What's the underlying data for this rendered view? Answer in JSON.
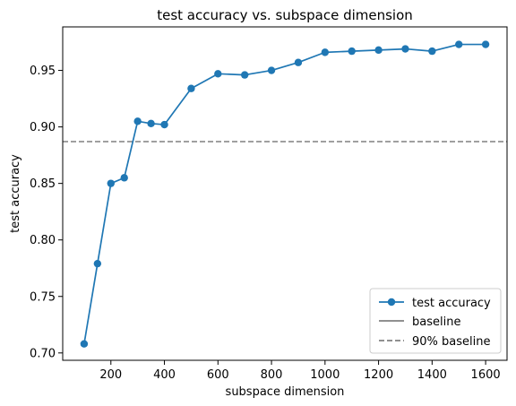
{
  "chart_data": {
    "type": "line",
    "title": "test accuracy vs. subspace dimension",
    "xlabel": "subspace dimension",
    "ylabel": "test accuracy",
    "xlim": [
      20,
      1680
    ],
    "ylim": [
      0.6935,
      0.9885
    ],
    "xticks": [
      200,
      400,
      600,
      800,
      1000,
      1200,
      1400,
      1600
    ],
    "xtick_labels": [
      "200",
      "400",
      "600",
      "800",
      "1000",
      "1200",
      "1400",
      "1600"
    ],
    "yticks": [
      0.7,
      0.75,
      0.8,
      0.85,
      0.9,
      0.95
    ],
    "ytick_labels": [
      "0.70",
      "0.75",
      "0.80",
      "0.85",
      "0.90",
      "0.95"
    ],
    "grid": false,
    "legend_position": "lower right",
    "series": [
      {
        "name": "test accuracy",
        "x": [
          100,
          150,
          200,
          250,
          300,
          350,
          400,
          500,
          600,
          700,
          800,
          900,
          1000,
          1100,
          1200,
          1300,
          1400,
          1500,
          1600
        ],
        "values": [
          0.708,
          0.779,
          0.85,
          0.855,
          0.905,
          0.903,
          0.902,
          0.934,
          0.947,
          0.946,
          0.95,
          0.957,
          0.966,
          0.967,
          0.968,
          0.969,
          0.967,
          0.973,
          0.973
        ],
        "color": "#1f77b4",
        "style": "solid",
        "marker": "circle"
      },
      {
        "name": "baseline",
        "color": "#808080",
        "style": "solid"
      },
      {
        "name": "90% baseline",
        "y": 0.887,
        "color": "#808080",
        "style": "dashed"
      }
    ]
  }
}
